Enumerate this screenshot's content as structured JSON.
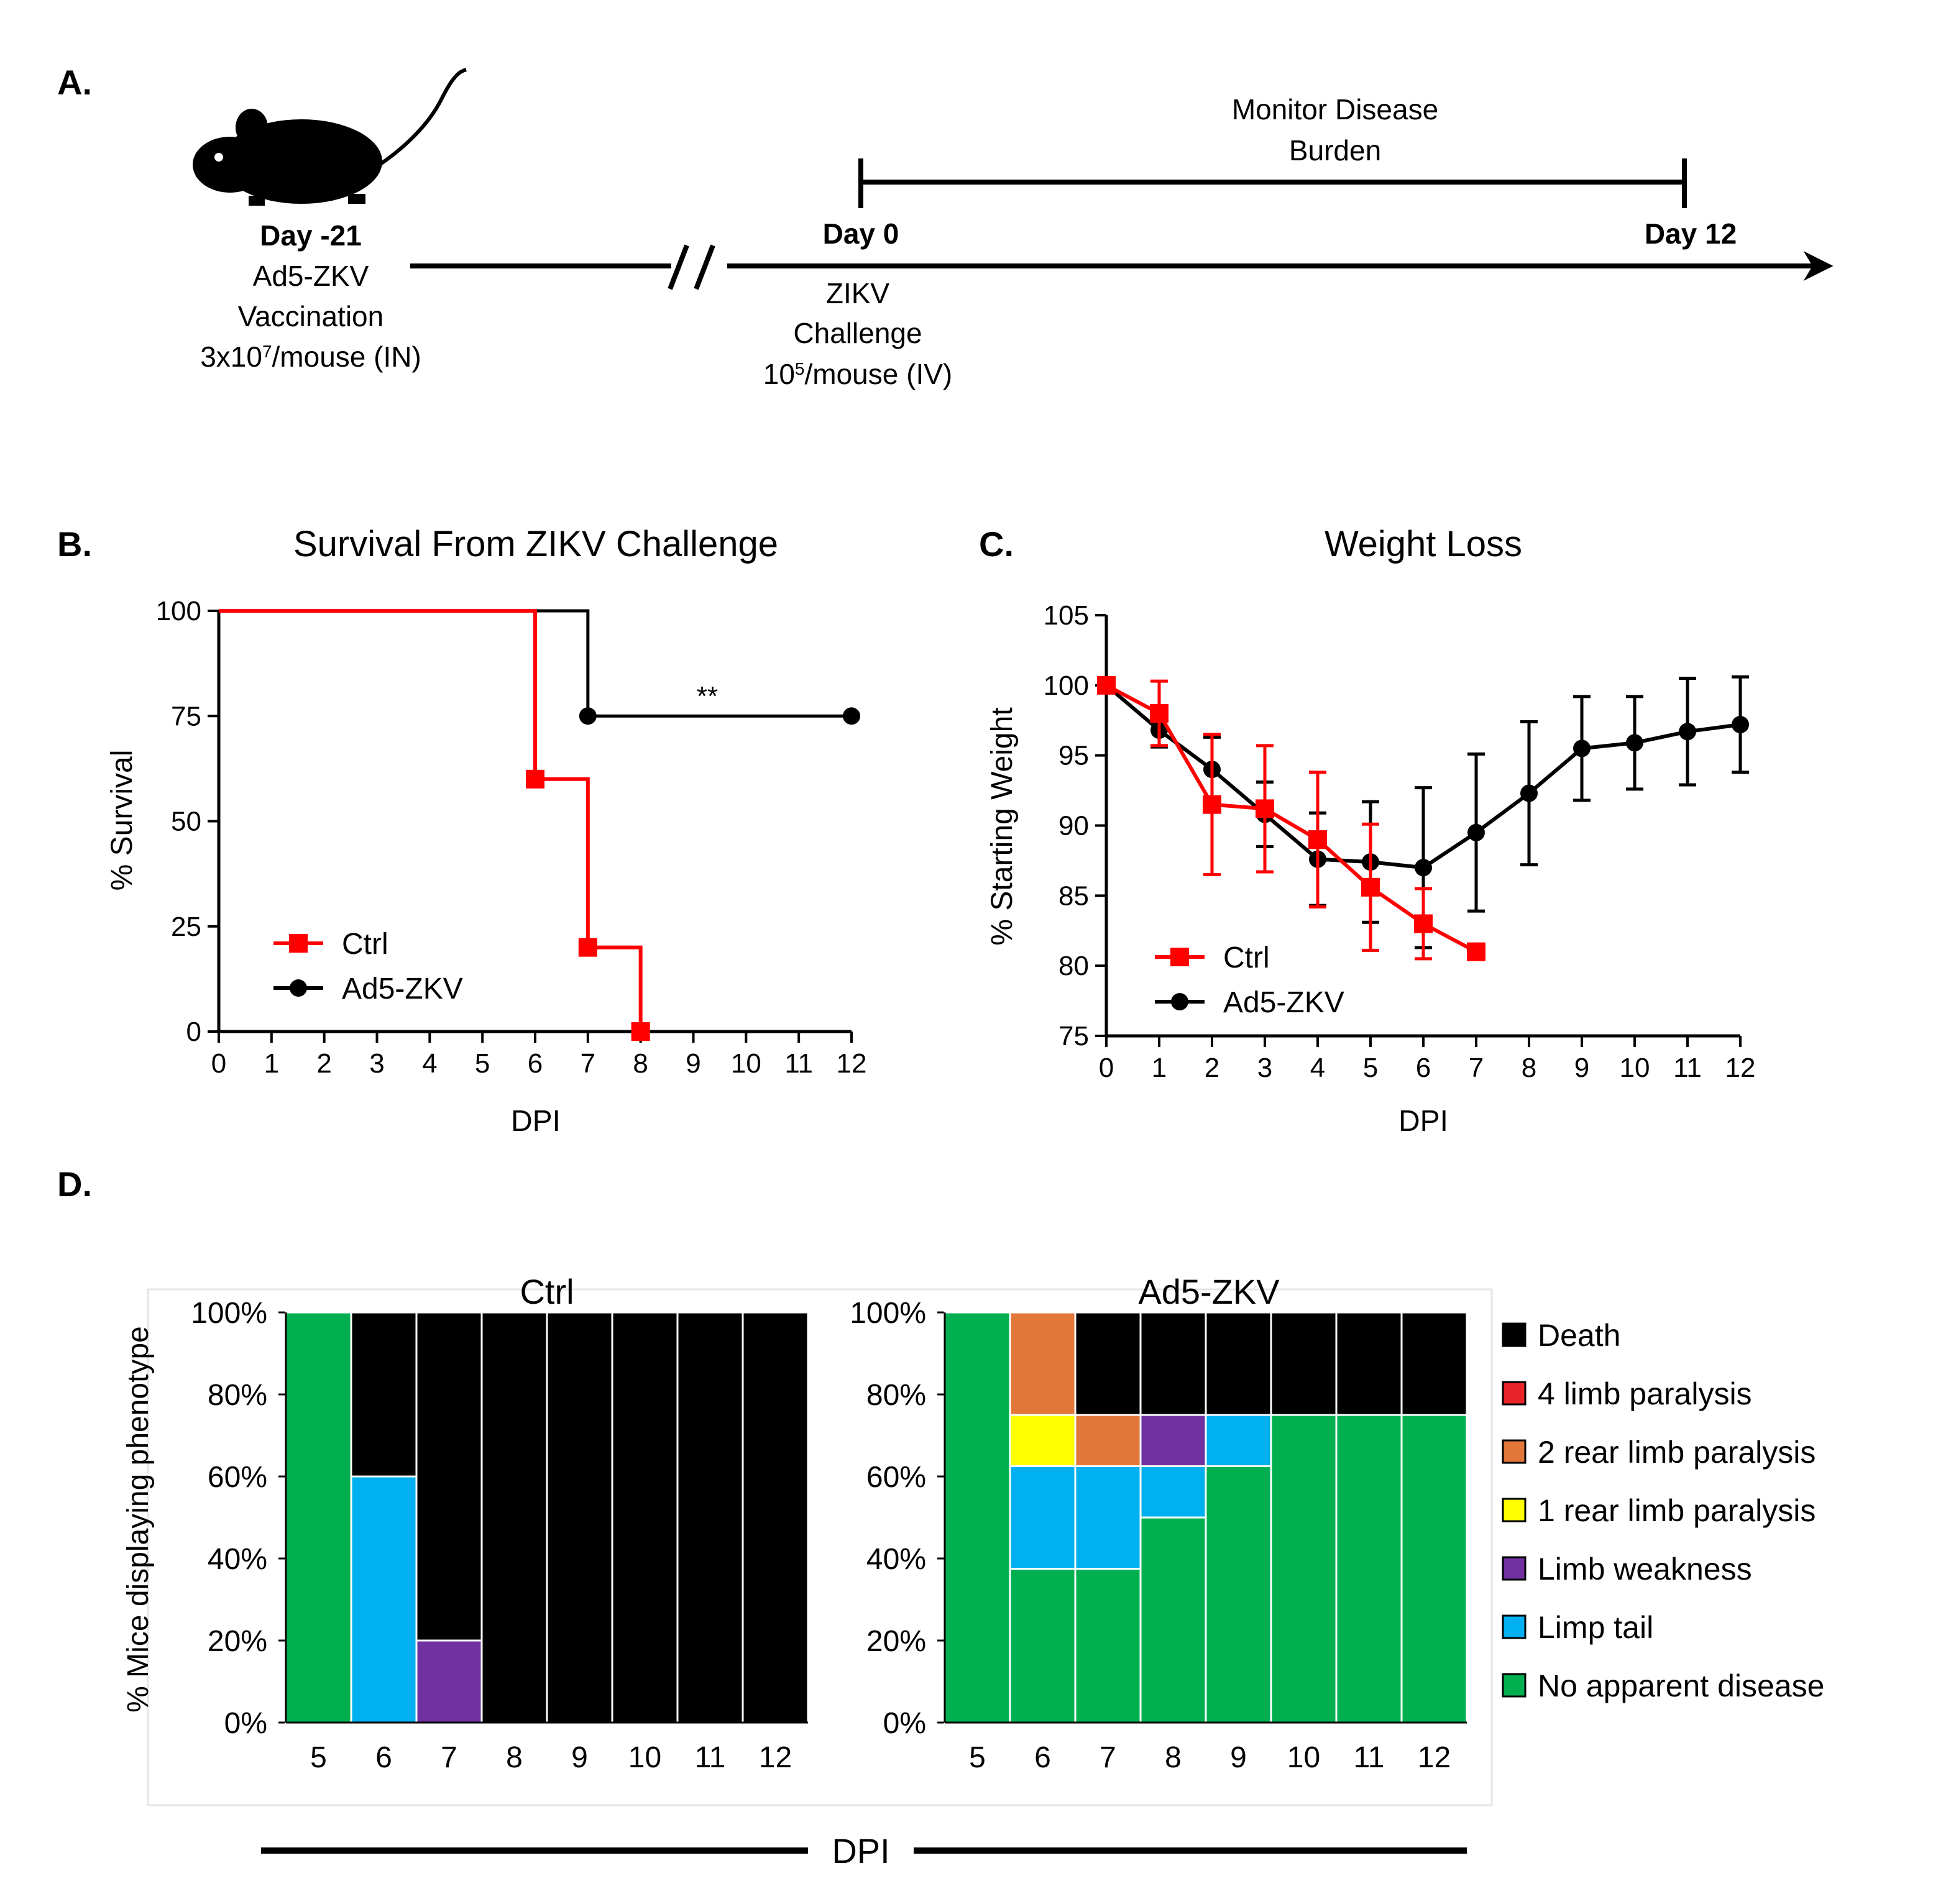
{
  "panels": {
    "a": "A.",
    "b": "B.",
    "c": "C.",
    "d": "D."
  },
  "timeline": {
    "vacc_day": "Day -21",
    "vacc_line1": "Ad5-ZKV",
    "vacc_line2": "Vaccination",
    "vacc_dose_prefix": "3x10",
    "vacc_dose_exp": "7",
    "vacc_dose_suffix": "/mouse (IN)",
    "challenge_day": "Day 0",
    "challenge_line1": "ZIKV",
    "challenge_line2": "Challenge",
    "challenge_dose_prefix": "10",
    "challenge_dose_exp": "5",
    "challenge_dose_suffix": "/mouse (IV)",
    "end_day": "Day 12",
    "monitor_line1": "Monitor Disease",
    "monitor_line2": "Burden"
  },
  "colors": {
    "ctrl": "#ff0000",
    "vacc": "#000000",
    "death": "#000000",
    "four_limb": "#e8242a",
    "two_rear": "#e2773a",
    "one_rear": "#ffff00",
    "weakness": "#7030a0",
    "limp_tail": "#00b0f0",
    "no_disease": "#00b050"
  },
  "chart_data": [
    {
      "type": "line",
      "id": "survival",
      "title": "Survival From ZIKV Challenge",
      "xlabel": "DPI",
      "ylabel": "% Survival",
      "xlim": [
        0,
        12
      ],
      "ylim": [
        0,
        100
      ],
      "xticks": [
        "0",
        "1",
        "2",
        "3",
        "4",
        "5",
        "6",
        "7",
        "8",
        "9",
        "10",
        "11",
        "12"
      ],
      "yticks": [
        "0",
        "25",
        "50",
        "75",
        "100"
      ],
      "annotation": "**",
      "series": [
        {
          "name": "Ctrl",
          "step": [
            [
              0,
              100
            ],
            [
              6,
              100
            ],
            [
              6,
              60
            ],
            [
              7,
              60
            ],
            [
              7,
              20
            ],
            [
              8,
              20
            ],
            [
              8,
              0
            ]
          ],
          "markers": [
            [
              6,
              60
            ],
            [
              7,
              20
            ],
            [
              8,
              0
            ]
          ]
        },
        {
          "name": "Ad5-ZKV",
          "step": [
            [
              0,
              100
            ],
            [
              7,
              100
            ],
            [
              7,
              75
            ],
            [
              12,
              75
            ]
          ],
          "markers": [
            [
              7,
              75
            ],
            [
              12,
              75
            ]
          ]
        }
      ]
    },
    {
      "type": "line",
      "id": "weight",
      "title": "Weight Loss",
      "xlabel": "DPI",
      "ylabel": "% Starting Weight",
      "xlim": [
        0,
        12
      ],
      "ylim": [
        75,
        105
      ],
      "xticks": [
        "0",
        "1",
        "2",
        "3",
        "4",
        "5",
        "6",
        "7",
        "8",
        "9",
        "10",
        "11",
        "12"
      ],
      "yticks": [
        "75",
        "80",
        "85",
        "90",
        "95",
        "100",
        "105"
      ],
      "series": [
        {
          "name": "Ctrl",
          "x": [
            0,
            1,
            2,
            3,
            4,
            5,
            6,
            7
          ],
          "y": [
            100,
            98,
            91.5,
            91.2,
            89,
            85.6,
            83,
            81
          ],
          "err": [
            0,
            2.3,
            5,
            4.5,
            4.8,
            4.5,
            2.5,
            0
          ]
        },
        {
          "name": "Ad5-ZKV",
          "x": [
            0,
            1,
            2,
            3,
            4,
            5,
            6,
            7,
            8,
            9,
            10,
            11,
            12
          ],
          "y": [
            100,
            96.8,
            94,
            90.8,
            87.6,
            87.4,
            87,
            89.5,
            92.3,
            95.5,
            95.9,
            96.7,
            97.2
          ],
          "err": [
            0,
            1.2,
            2.3,
            2.3,
            3.3,
            4.3,
            5.7,
            5.6,
            5.1,
            3.7,
            3.3,
            3.8,
            3.4
          ]
        }
      ]
    },
    {
      "type": "bar",
      "id": "phenotype_ctrl",
      "title": "Ctrl",
      "ylabel": "% Mice displaying phenotype",
      "xlabel": "DPI",
      "categories": [
        "5",
        "6",
        "7",
        "8",
        "9",
        "10",
        "11",
        "12"
      ],
      "yticks": [
        "0%",
        "20%",
        "40%",
        "60%",
        "80%",
        "100%"
      ],
      "stacks": [
        [
          [
            "no_disease",
            100
          ]
        ],
        [
          [
            "limp_tail",
            60
          ],
          [
            "death",
            40
          ]
        ],
        [
          [
            "weakness",
            20
          ],
          [
            "death",
            80
          ]
        ],
        [
          [
            "death",
            100
          ]
        ],
        [
          [
            "death",
            100
          ]
        ],
        [
          [
            "death",
            100
          ]
        ],
        [
          [
            "death",
            100
          ]
        ],
        [
          [
            "death",
            100
          ]
        ]
      ]
    },
    {
      "type": "bar",
      "id": "phenotype_vacc",
      "title": "Ad5-ZKV",
      "categories": [
        "5",
        "6",
        "7",
        "8",
        "9",
        "10",
        "11",
        "12"
      ],
      "yticks": [
        "0%",
        "20%",
        "40%",
        "60%",
        "80%",
        "100%"
      ],
      "stacks": [
        [
          [
            "no_disease",
            100
          ]
        ],
        [
          [
            "no_disease",
            37.5
          ],
          [
            "limp_tail",
            25
          ],
          [
            "one_rear",
            12.5
          ],
          [
            "two_rear",
            25
          ]
        ],
        [
          [
            "no_disease",
            37.5
          ],
          [
            "limp_tail",
            25
          ],
          [
            "two_rear",
            12.5
          ],
          [
            "death",
            25
          ]
        ],
        [
          [
            "no_disease",
            50
          ],
          [
            "limp_tail",
            12.5
          ],
          [
            "weakness",
            12.5
          ],
          [
            "death",
            25
          ]
        ],
        [
          [
            "no_disease",
            62.5
          ],
          [
            "limp_tail",
            12.5
          ],
          [
            "death",
            25
          ]
        ],
        [
          [
            "no_disease",
            75
          ],
          [
            "death",
            25
          ]
        ],
        [
          [
            "no_disease",
            75
          ],
          [
            "death",
            25
          ]
        ],
        [
          [
            "no_disease",
            75
          ],
          [
            "death",
            25
          ]
        ]
      ]
    }
  ],
  "legend_phenotype": [
    {
      "key": "death",
      "label": "Death"
    },
    {
      "key": "four_limb",
      "label": "4 limb paralysis"
    },
    {
      "key": "two_rear",
      "label": "2 rear limb paralysis"
    },
    {
      "key": "one_rear",
      "label": "1 rear limb paralysis"
    },
    {
      "key": "weakness",
      "label": "Limb weakness"
    },
    {
      "key": "limp_tail",
      "label": "Limp tail"
    },
    {
      "key": "no_disease",
      "label": "No apparent disease"
    }
  ],
  "shared_xlabel": "DPI"
}
